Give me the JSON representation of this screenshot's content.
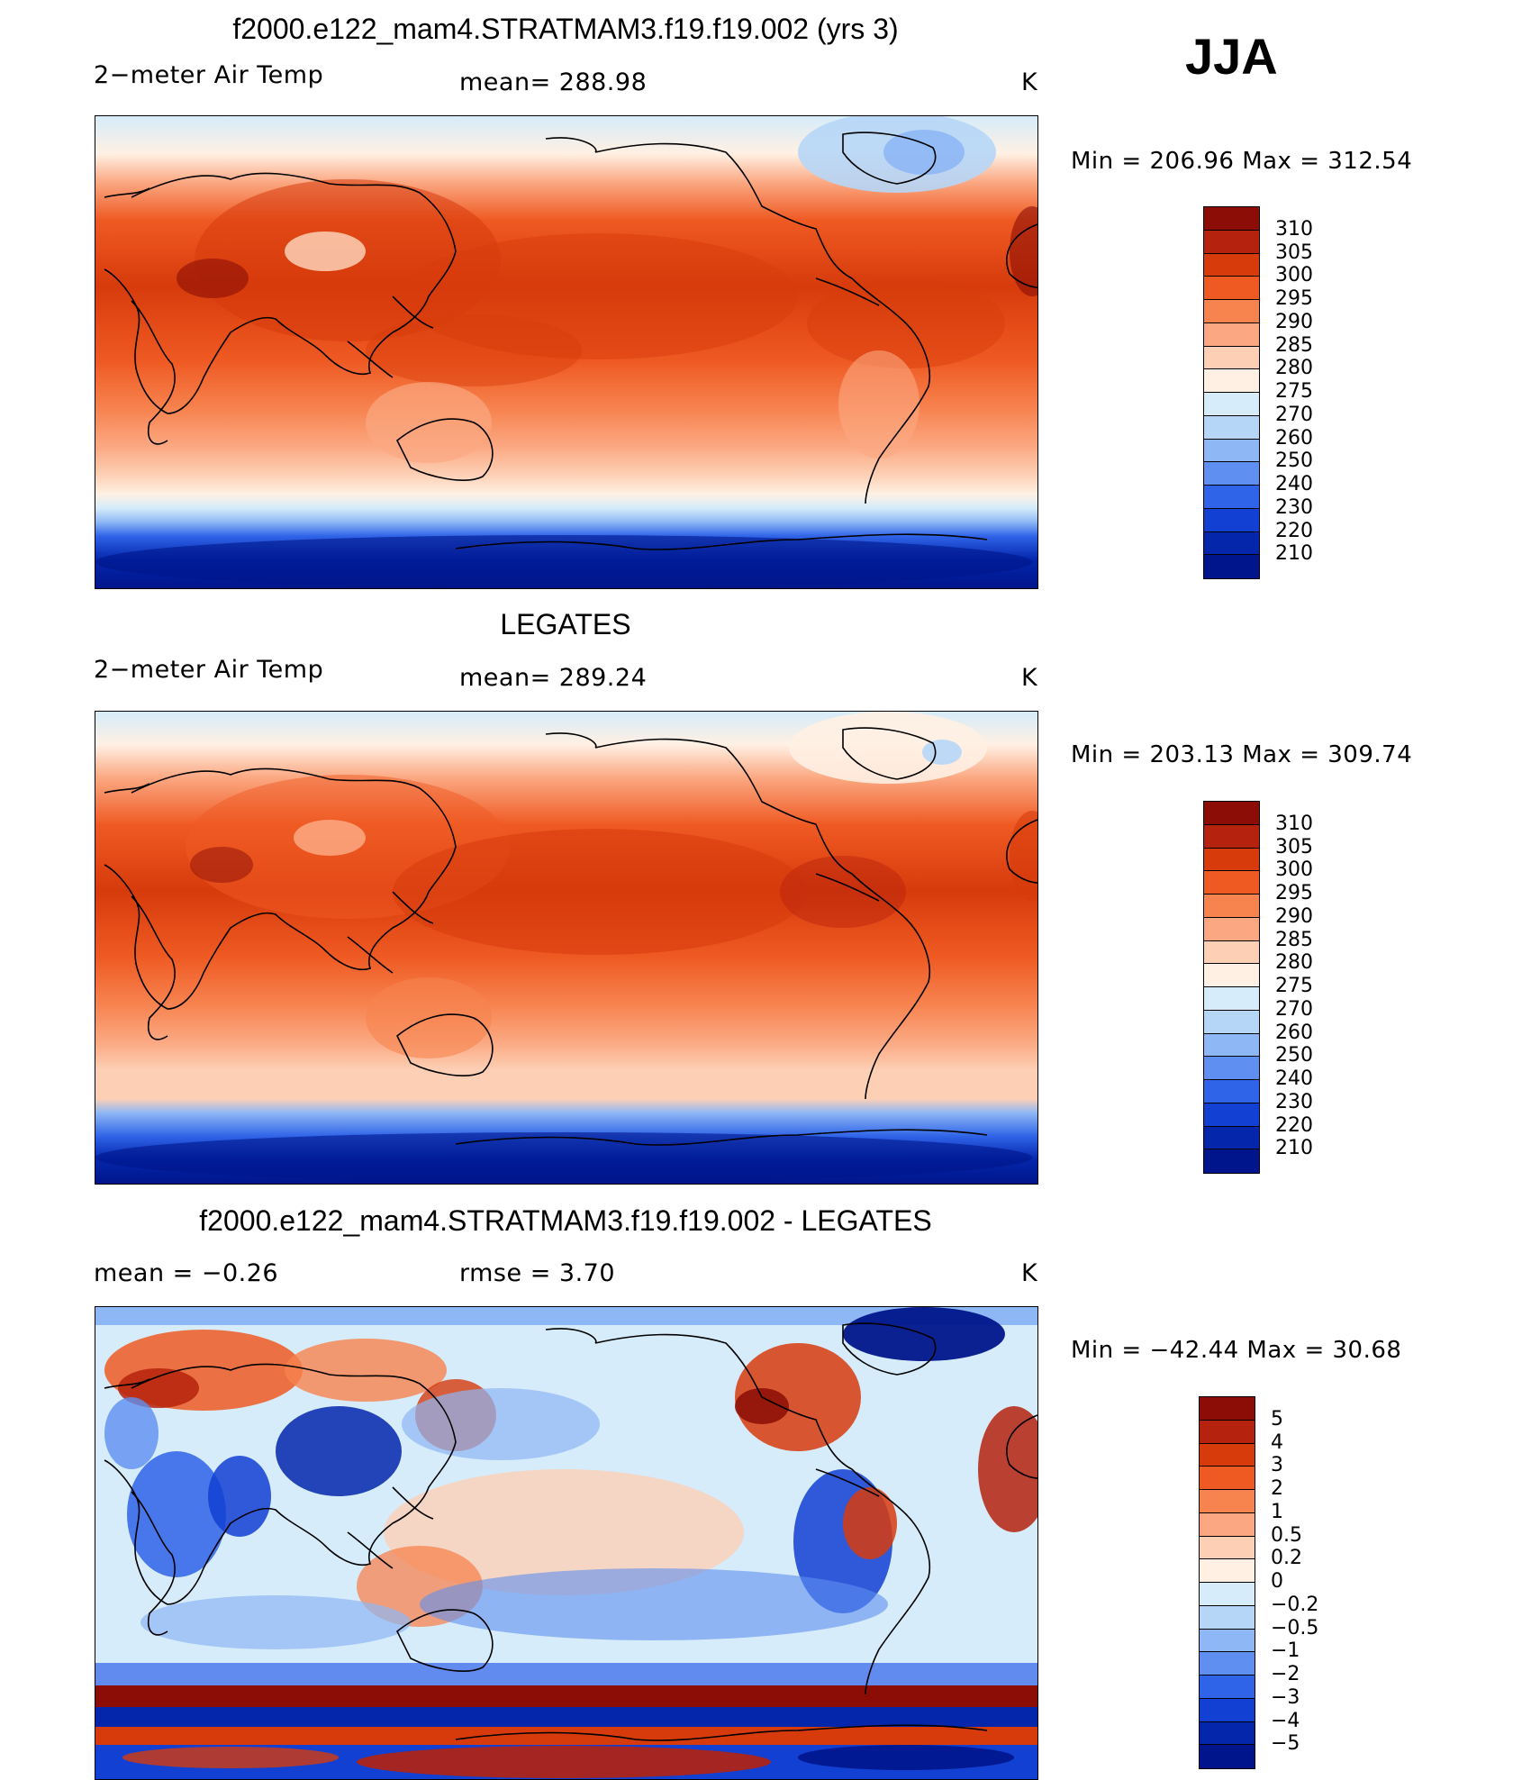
{
  "figure": {
    "season": "JJA",
    "panels": [
      {
        "title": "f2000.e122_mam4.STRATMAM3.f19.f19.002 (yrs 3)",
        "left_label": "2−meter Air Temp",
        "center_label": "mean=  288.98",
        "units": "K",
        "minmax": "Min  =  206.96  Max  =  312.54",
        "levels": [
          "310",
          "305",
          "300",
          "295",
          "290",
          "285",
          "280",
          "275",
          "270",
          "260",
          "250",
          "240",
          "230",
          "220",
          "210"
        ],
        "colors": [
          "#8b0d05",
          "#b5220d",
          "#d73b0c",
          "#ef5a23",
          "#f7834f",
          "#fba882",
          "#fdd0b5",
          "#fff0e3",
          "#d6ecfa",
          "#b6d6f7",
          "#8eb7f5",
          "#5f8ff0",
          "#2f63e8",
          "#1240d2",
          "#0426ab",
          "#00158b"
        ]
      },
      {
        "title": "LEGATES",
        "left_label": "2−meter Air Temp",
        "center_label": "mean=  289.24",
        "units": "K",
        "minmax": "Min  =  203.13  Max  =  309.74",
        "levels": [
          "310",
          "305",
          "300",
          "295",
          "290",
          "285",
          "280",
          "275",
          "270",
          "260",
          "250",
          "240",
          "230",
          "220",
          "210"
        ],
        "colors": [
          "#8b0d05",
          "#b5220d",
          "#d73b0c",
          "#ef5a23",
          "#f7834f",
          "#fba882",
          "#fdd0b5",
          "#fff0e3",
          "#d6ecfa",
          "#b6d6f7",
          "#8eb7f5",
          "#5f8ff0",
          "#2f63e8",
          "#1240d2",
          "#0426ab",
          "#00158b"
        ]
      },
      {
        "title": "f2000.e122_mam4.STRATMAM3.f19.f19.002 - LEGATES",
        "left_label": "mean  =    −0.26",
        "center_label": "rmse  =     3.70",
        "units": "K",
        "minmax": "Min  =  −42.44  Max  =    30.68",
        "levels": [
          "5",
          "4",
          "3",
          "2",
          "1",
          "0.5",
          "0.2",
          "0",
          "−0.2",
          "−0.5",
          "−1",
          "−2",
          "−3",
          "−4",
          "−5"
        ],
        "colors": [
          "#8b0d05",
          "#b5220d",
          "#d73b0c",
          "#ef5a23",
          "#f7834f",
          "#fba882",
          "#fdd0b5",
          "#fff0e3",
          "#d6ecfa",
          "#b6d6f7",
          "#8eb7f5",
          "#5f8ff0",
          "#2f63e8",
          "#1240d2",
          "#0426ab",
          "#00158b"
        ]
      }
    ]
  }
}
